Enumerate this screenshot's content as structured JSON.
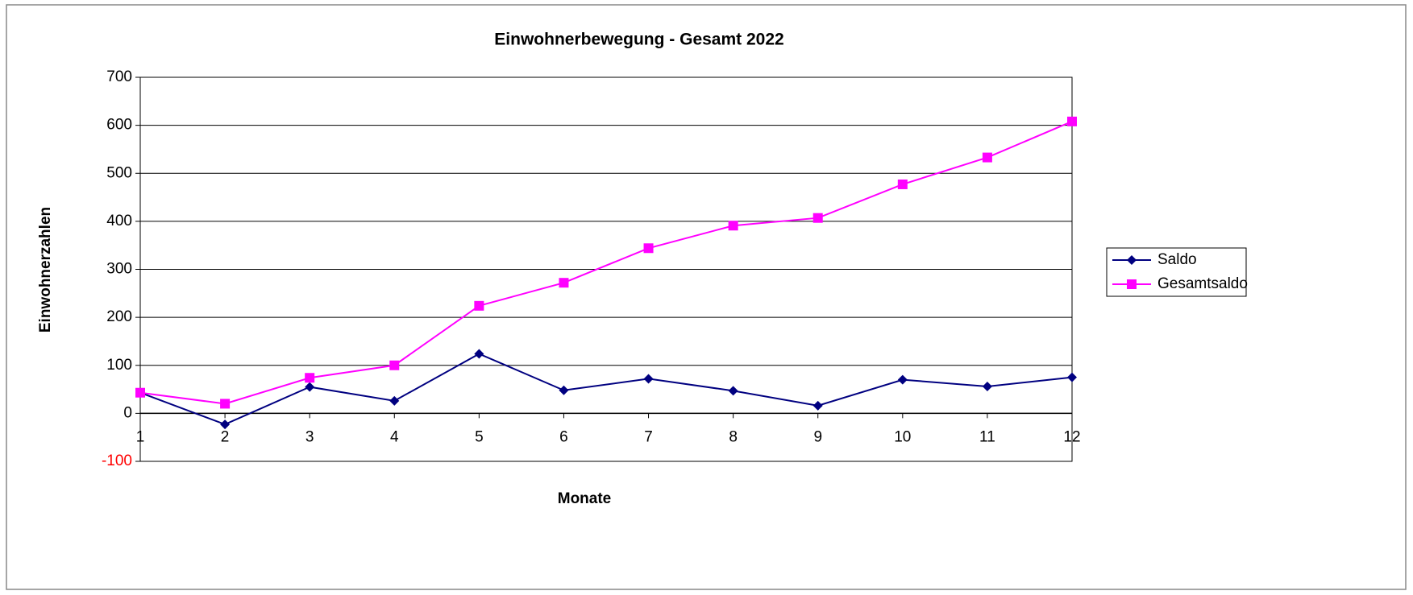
{
  "chart_data": {
    "type": "line",
    "title": "Einwohnerbewegung - Gesamt 2022",
    "xlabel": "Monate",
    "ylabel": "Einwohnerzahlen",
    "x": [
      1,
      2,
      3,
      4,
      5,
      6,
      7,
      8,
      9,
      10,
      11,
      12
    ],
    "xlim": [
      1,
      12
    ],
    "xticks": [
      1,
      2,
      3,
      4,
      5,
      6,
      7,
      8,
      9,
      10,
      11,
      12
    ],
    "ylim": [
      -100,
      700
    ],
    "yticks": [
      -100,
      0,
      100,
      200,
      300,
      400,
      500,
      600,
      700
    ],
    "negative_tick_color": "#ff0000",
    "grid": true,
    "legend": "right",
    "series": [
      {
        "name": "Saldo",
        "color": "#000080",
        "marker": "diamond",
        "values": [
          43,
          -23,
          55,
          26,
          124,
          48,
          72,
          47,
          16,
          70,
          56,
          75
        ]
      },
      {
        "name": "Gesamtsaldo",
        "color": "#ff00ff",
        "marker": "square",
        "values": [
          43,
          20,
          74,
          100,
          224,
          272,
          344,
          391,
          407,
          477,
          533,
          608
        ]
      }
    ]
  }
}
